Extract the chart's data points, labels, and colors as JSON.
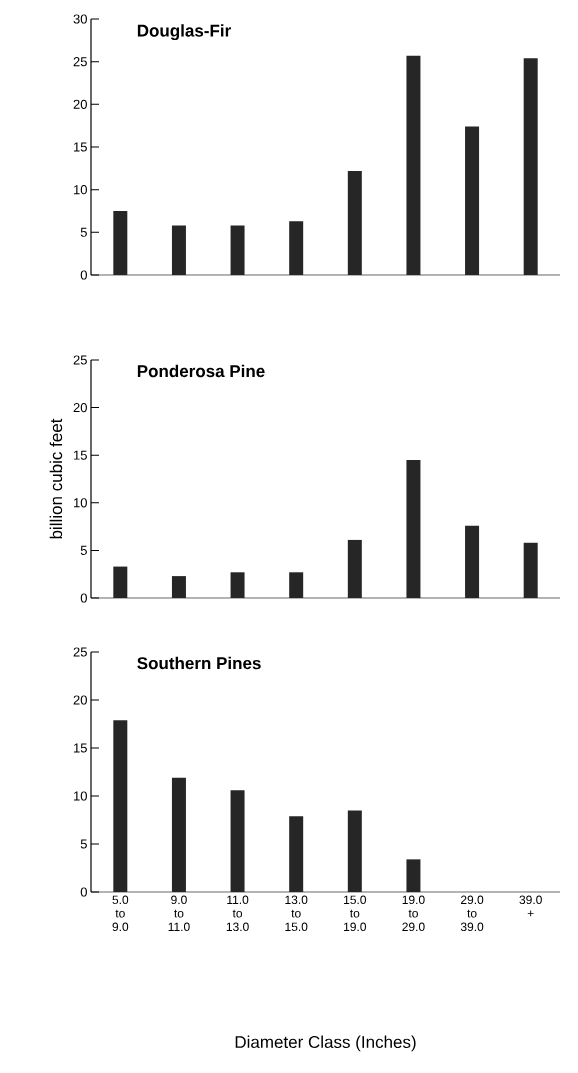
{
  "chart_data": [
    {
      "type": "bar",
      "title": "Douglas-Fir",
      "categories": [
        null,
        null,
        null,
        null,
        null,
        null,
        null,
        null
      ],
      "values": [
        7.5,
        5.8,
        5.8,
        6.3,
        12.2,
        25.7,
        17.4,
        25.4
      ],
      "color": "#262626",
      "ylim": [
        0,
        30
      ],
      "yticks": [
        0,
        5,
        10,
        15,
        20,
        25,
        30
      ],
      "tick_labels": "y"
    },
    {
      "type": "bar",
      "title": "Ponderosa Pine",
      "ylabel": "billion cubic feet",
      "categories": [
        null,
        null,
        null,
        null,
        null,
        null,
        null,
        null
      ],
      "values": [
        3.3,
        2.3,
        2.7,
        2.7,
        6.1,
        14.5,
        7.6,
        5.8
      ],
      "color": "#262626",
      "ylim": [
        0,
        25
      ],
      "yticks": [
        0,
        5,
        10,
        15,
        20,
        25
      ],
      "tick_labels": "y"
    },
    {
      "type": "bar",
      "title": "Southern Pines",
      "xlabel": "Diameter Class (Inches)",
      "categories": [
        "5.0 to 9.0",
        "9.0 to 11.0",
        "11.0 to 13.0",
        "13.0 to 15.0",
        "15.0 to 19.0",
        "19.0 to 29.0",
        "29.0 to 39.0",
        "39.0 +"
      ],
      "values": [
        17.9,
        11.9,
        10.6,
        7.9,
        8.5,
        3.4,
        null,
        null
      ],
      "color": "#262626",
      "ylim": [
        0,
        25
      ],
      "yticks": [
        0,
        5,
        10,
        15,
        20,
        25
      ]
    }
  ]
}
